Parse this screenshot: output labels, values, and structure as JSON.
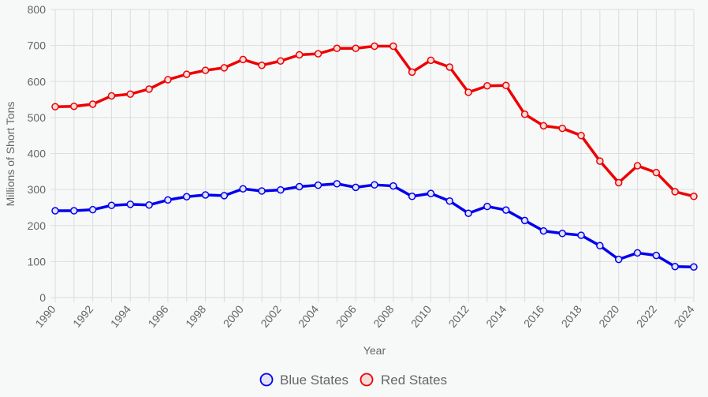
{
  "chart_data": {
    "type": "line",
    "xlabel": "Year",
    "ylabel": "Millions of Short Tons",
    "ylim": [
      0,
      800
    ],
    "y_ticks": [
      0,
      100,
      200,
      300,
      400,
      500,
      600,
      700,
      800
    ],
    "x": [
      1990,
      1991,
      1992,
      1993,
      1994,
      1995,
      1996,
      1997,
      1998,
      1999,
      2000,
      2001,
      2002,
      2003,
      2004,
      2005,
      2006,
      2007,
      2008,
      2009,
      2010,
      2011,
      2012,
      2013,
      2014,
      2015,
      2016,
      2017,
      2018,
      2019,
      2020,
      2021,
      2022,
      2023,
      2024
    ],
    "x_tick_labels": [
      "1990",
      "1992",
      "1994",
      "1996",
      "1998",
      "2000",
      "2002",
      "2004",
      "2006",
      "2008",
      "2010",
      "2012",
      "2014",
      "2016",
      "2018",
      "2020",
      "2022",
      "2024"
    ],
    "grid": true,
    "legend_position": "bottom",
    "series": [
      {
        "name": "Blue States",
        "color": "#0000ee",
        "fill": "#e4e4f4",
        "values": [
          241,
          241,
          244,
          256,
          259,
          257,
          271,
          280,
          285,
          283,
          302,
          296,
          299,
          308,
          312,
          316,
          306,
          313,
          310,
          281,
          289,
          268,
          234,
          253,
          243,
          214,
          185,
          178,
          173,
          144,
          106,
          124,
          117,
          86,
          85
        ]
      },
      {
        "name": "Red States",
        "color": "#ee0000",
        "fill": "#f4dcdc",
        "values": [
          530,
          531,
          537,
          560,
          565,
          579,
          605,
          620,
          631,
          638,
          661,
          645,
          657,
          674,
          677,
          692,
          692,
          698,
          698,
          626,
          659,
          640,
          570,
          588,
          589,
          509,
          477,
          470,
          450,
          379,
          319,
          366,
          347,
          294,
          281
        ]
      }
    ]
  }
}
